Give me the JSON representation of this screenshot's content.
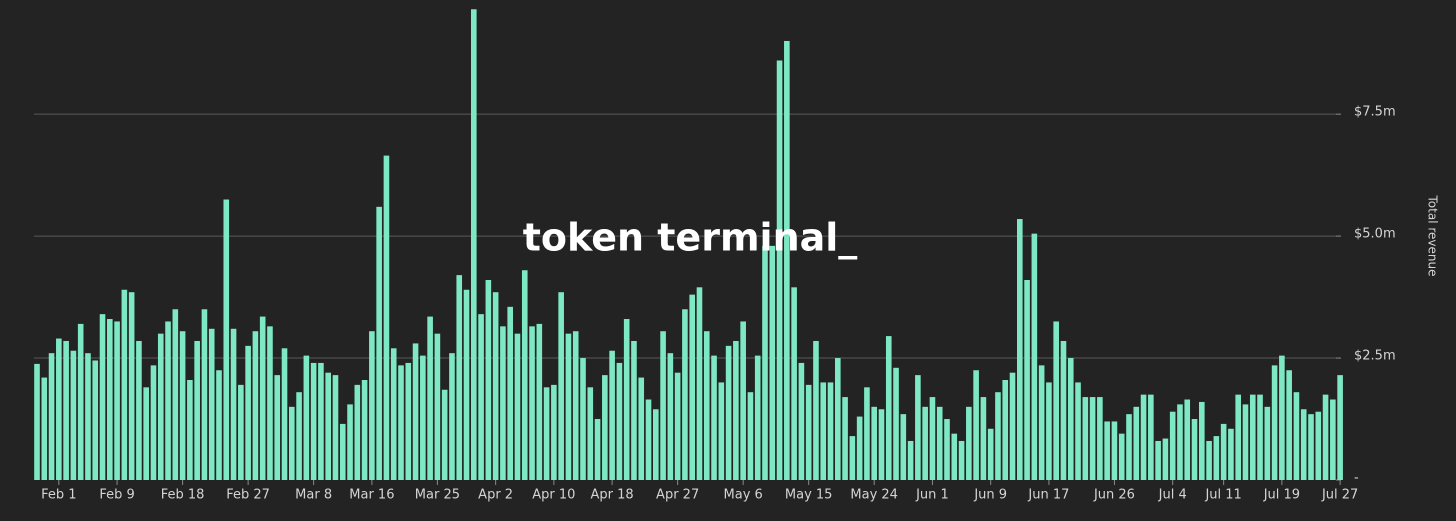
{
  "chart_data": {
    "type": "bar",
    "watermark": "token terminal_",
    "y_label": "Total revenue",
    "color": "#7ee8c4",
    "grid": true,
    "ylim": [
      0,
      9.84
    ],
    "yticks": [
      {
        "value": 0,
        "label": "-"
      },
      {
        "value": 2.5,
        "label": "$2.5m"
      },
      {
        "value": 5,
        "label": "$5.0m"
      },
      {
        "value": 7.5,
        "label": "$7.5m"
      }
    ],
    "categories": [
      null,
      null,
      null,
      "Feb 1",
      null,
      null,
      null,
      null,
      null,
      null,
      null,
      "Feb 9",
      null,
      null,
      null,
      null,
      null,
      null,
      null,
      null,
      "Feb 18",
      null,
      null,
      null,
      null,
      null,
      null,
      null,
      null,
      "Feb 27",
      null,
      null,
      null,
      null,
      null,
      null,
      null,
      null,
      "Mar 8",
      null,
      null,
      null,
      null,
      null,
      null,
      null,
      "Mar 16",
      null,
      null,
      null,
      null,
      null,
      null,
      null,
      null,
      "Mar 25",
      null,
      null,
      null,
      null,
      null,
      null,
      null,
      "Apr 2",
      null,
      null,
      null,
      null,
      null,
      null,
      null,
      "Apr 10",
      null,
      null,
      null,
      null,
      null,
      null,
      null,
      "Apr 18",
      null,
      null,
      null,
      null,
      null,
      null,
      null,
      null,
      "Apr 27",
      null,
      null,
      null,
      null,
      null,
      null,
      null,
      null,
      "May 6",
      null,
      null,
      null,
      null,
      null,
      null,
      null,
      null,
      "May 15",
      null,
      null,
      null,
      null,
      null,
      null,
      null,
      null,
      "May 24",
      null,
      null,
      null,
      null,
      null,
      null,
      null,
      "Jun 1",
      null,
      null,
      null,
      null,
      null,
      null,
      null,
      "Jun 9",
      null,
      null,
      null,
      null,
      null,
      null,
      null,
      "Jun 17",
      null,
      null,
      null,
      null,
      null,
      null,
      null,
      null,
      "Jun 26",
      null,
      null,
      null,
      null,
      null,
      null,
      null,
      "Jul 4",
      null,
      null,
      null,
      null,
      null,
      null,
      "Jul 11",
      null,
      null,
      null,
      null,
      null,
      null,
      null,
      "Jul 19",
      null,
      null,
      null,
      null,
      null,
      null,
      null,
      "Jul 27"
    ],
    "values": [
      2.38,
      2.1,
      2.6,
      2.9,
      2.85,
      2.65,
      3.2,
      2.6,
      2.45,
      3.4,
      3.3,
      3.25,
      3.9,
      3.85,
      2.85,
      1.9,
      2.35,
      3.0,
      3.25,
      3.5,
      3.05,
      2.05,
      2.85,
      3.5,
      3.1,
      2.25,
      5.75,
      3.1,
      1.95,
      2.75,
      3.05,
      3.35,
      3.15,
      2.15,
      2.7,
      1.5,
      1.8,
      2.55,
      2.4,
      2.4,
      2.2,
      2.15,
      1.15,
      1.55,
      1.95,
      2.05,
      3.05,
      5.6,
      6.65,
      2.7,
      2.35,
      2.4,
      2.8,
      2.55,
      3.35,
      3.0,
      1.85,
      2.6,
      4.2,
      3.9,
      9.65,
      3.4,
      4.1,
      3.85,
      3.15,
      3.55,
      3.0,
      4.3,
      3.15,
      3.2,
      1.9,
      1.95,
      3.85,
      3.0,
      3.05,
      2.5,
      1.9,
      1.25,
      2.15,
      2.65,
      2.4,
      3.3,
      2.85,
      2.1,
      1.65,
      1.45,
      3.05,
      2.6,
      2.2,
      3.5,
      3.8,
      3.95,
      3.05,
      2.55,
      2.0,
      2.75,
      2.85,
      3.25,
      1.8,
      2.55,
      4.8,
      4.8,
      8.6,
      9.0,
      3.95,
      2.4,
      1.95,
      2.85,
      2.0,
      2.0,
      2.5,
      1.7,
      0.9,
      1.3,
      1.9,
      1.5,
      1.45,
      2.95,
      2.3,
      1.35,
      0.8,
      2.15,
      1.5,
      1.7,
      1.5,
      1.25,
      0.95,
      0.8,
      1.5,
      2.25,
      1.7,
      1.05,
      1.8,
      2.05,
      2.2,
      5.35,
      4.1,
      5.05,
      2.35,
      2.0,
      3.25,
      2.85,
      2.5,
      2.0,
      1.7,
      1.7,
      1.7,
      1.2,
      1.2,
      0.95,
      1.35,
      1.5,
      1.75,
      1.75,
      0.8,
      0.85,
      1.4,
      1.55,
      1.65,
      1.25,
      1.6,
      0.8,
      0.9,
      1.15,
      1.05,
      1.75,
      1.55,
      1.75,
      1.75,
      1.5,
      2.35,
      2.55,
      2.25,
      1.8,
      1.45,
      1.35,
      1.4,
      1.75,
      1.65,
      2.15
    ]
  }
}
